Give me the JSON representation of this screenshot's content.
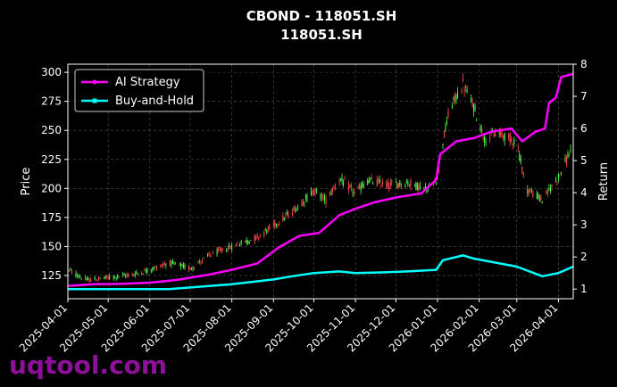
{
  "watermark": "uqtool.com",
  "colors": {
    "background": "#000000",
    "strategy": "#ff00ff",
    "buyhold": "#00ffff",
    "candle_up": "#4cff4c",
    "candle_down": "#ff4c4c",
    "grid": "#555555",
    "watermark": "#8e0f9a"
  },
  "chart_data": {
    "type": "line",
    "title": "CBOND - 118051.SH",
    "subtitle": "118051.SH",
    "xlabel": "",
    "ylabel": "Price",
    "y2label": "Return",
    "grid": true,
    "legend_position": "top-left",
    "x_range": [
      "2025-04-01",
      "2026-04-12"
    ],
    "ylim": [
      105,
      307
    ],
    "y2lim": [
      0.7,
      8.0
    ],
    "yticks": [
      125,
      150,
      175,
      200,
      225,
      250,
      275,
      300
    ],
    "y2ticks": [
      1,
      2,
      3,
      4,
      5,
      6,
      7,
      8
    ],
    "xticks": [
      "2025-04-01",
      "2025-05-01",
      "2025-06-01",
      "2025-07-01",
      "2025-08-01",
      "2025-09-01",
      "2025-10-01",
      "2025-11-01",
      "2025-12-01",
      "2026-01-01",
      "2026-02-01",
      "2026-03-01",
      "2026-04-01"
    ],
    "price_path": [
      [
        "2025-04-01",
        130
      ],
      [
        "2025-04-15",
        121
      ],
      [
        "2025-05-01",
        123
      ],
      [
        "2025-05-20",
        126
      ],
      [
        "2025-06-01",
        130
      ],
      [
        "2025-06-15",
        136
      ],
      [
        "2025-07-01",
        131
      ],
      [
        "2025-07-15",
        142
      ],
      [
        "2025-08-01",
        150
      ],
      [
        "2025-08-20",
        158
      ],
      [
        "2025-09-01",
        168
      ],
      [
        "2025-09-15",
        180
      ],
      [
        "2025-10-01",
        198
      ],
      [
        "2025-10-10",
        190
      ],
      [
        "2025-10-20",
        208
      ],
      [
        "2025-11-01",
        196
      ],
      [
        "2025-11-10",
        207
      ],
      [
        "2025-11-25",
        203
      ],
      [
        "2025-12-10",
        205
      ],
      [
        "2025-12-25",
        199
      ],
      [
        "2026-01-01",
        210
      ],
      [
        "2026-01-05",
        240
      ],
      [
        "2026-01-10",
        268
      ],
      [
        "2026-01-20",
        290
      ],
      [
        "2026-01-28",
        270
      ],
      [
        "2026-02-05",
        243
      ],
      [
        "2026-02-15",
        248
      ],
      [
        "2026-03-01",
        240
      ],
      [
        "2026-03-08",
        200
      ],
      [
        "2026-03-20",
        190
      ],
      [
        "2026-04-01",
        210
      ],
      [
        "2026-04-12",
        238
      ]
    ],
    "series": [
      {
        "name": "AI Strategy",
        "points": [
          [
            "2025-04-01",
            1.1
          ],
          [
            "2025-04-20",
            1.15
          ],
          [
            "2025-05-10",
            1.16
          ],
          [
            "2025-06-01",
            1.2
          ],
          [
            "2025-06-20",
            1.28
          ],
          [
            "2025-07-15",
            1.45
          ],
          [
            "2025-08-01",
            1.6
          ],
          [
            "2025-08-20",
            1.8
          ],
          [
            "2025-09-05",
            2.3
          ],
          [
            "2025-09-20",
            2.65
          ],
          [
            "2025-10-05",
            2.75
          ],
          [
            "2025-10-20",
            3.3
          ],
          [
            "2025-11-01",
            3.5
          ],
          [
            "2025-11-15",
            3.7
          ],
          [
            "2025-12-01",
            3.85
          ],
          [
            "2025-12-20",
            3.98
          ],
          [
            "2025-12-31",
            4.4
          ],
          [
            "2026-01-01",
            4.7
          ],
          [
            "2026-01-03",
            5.2
          ],
          [
            "2026-01-15",
            5.6
          ],
          [
            "2026-01-28",
            5.7
          ],
          [
            "2026-02-10",
            5.9
          ],
          [
            "2026-02-25",
            6.0
          ],
          [
            "2026-03-05",
            5.6
          ],
          [
            "2026-03-15",
            5.9
          ],
          [
            "2026-03-22",
            6.0
          ],
          [
            "2026-03-25",
            6.8
          ],
          [
            "2026-03-30",
            6.95
          ],
          [
            "2026-04-03",
            7.6
          ],
          [
            "2026-04-12",
            7.7
          ]
        ]
      },
      {
        "name": "Buy-and-Hold",
        "points": [
          [
            "2025-04-01",
            1.0
          ],
          [
            "2025-05-01",
            1.0
          ],
          [
            "2025-06-01",
            1.0
          ],
          [
            "2025-06-15",
            1.0
          ],
          [
            "2025-07-01",
            1.05
          ],
          [
            "2025-08-01",
            1.15
          ],
          [
            "2025-09-01",
            1.3
          ],
          [
            "2025-09-15",
            1.4
          ],
          [
            "2025-10-01",
            1.5
          ],
          [
            "2025-10-20",
            1.55
          ],
          [
            "2025-11-01",
            1.5
          ],
          [
            "2025-11-20",
            1.52
          ],
          [
            "2025-12-10",
            1.55
          ],
          [
            "2025-12-31",
            1.6
          ],
          [
            "2026-01-05",
            1.9
          ],
          [
            "2026-01-20",
            2.05
          ],
          [
            "2026-01-28",
            1.95
          ],
          [
            "2026-02-10",
            1.85
          ],
          [
            "2026-03-01",
            1.7
          ],
          [
            "2026-03-20",
            1.4
          ],
          [
            "2026-04-01",
            1.5
          ],
          [
            "2026-04-12",
            1.7
          ]
        ]
      }
    ]
  }
}
